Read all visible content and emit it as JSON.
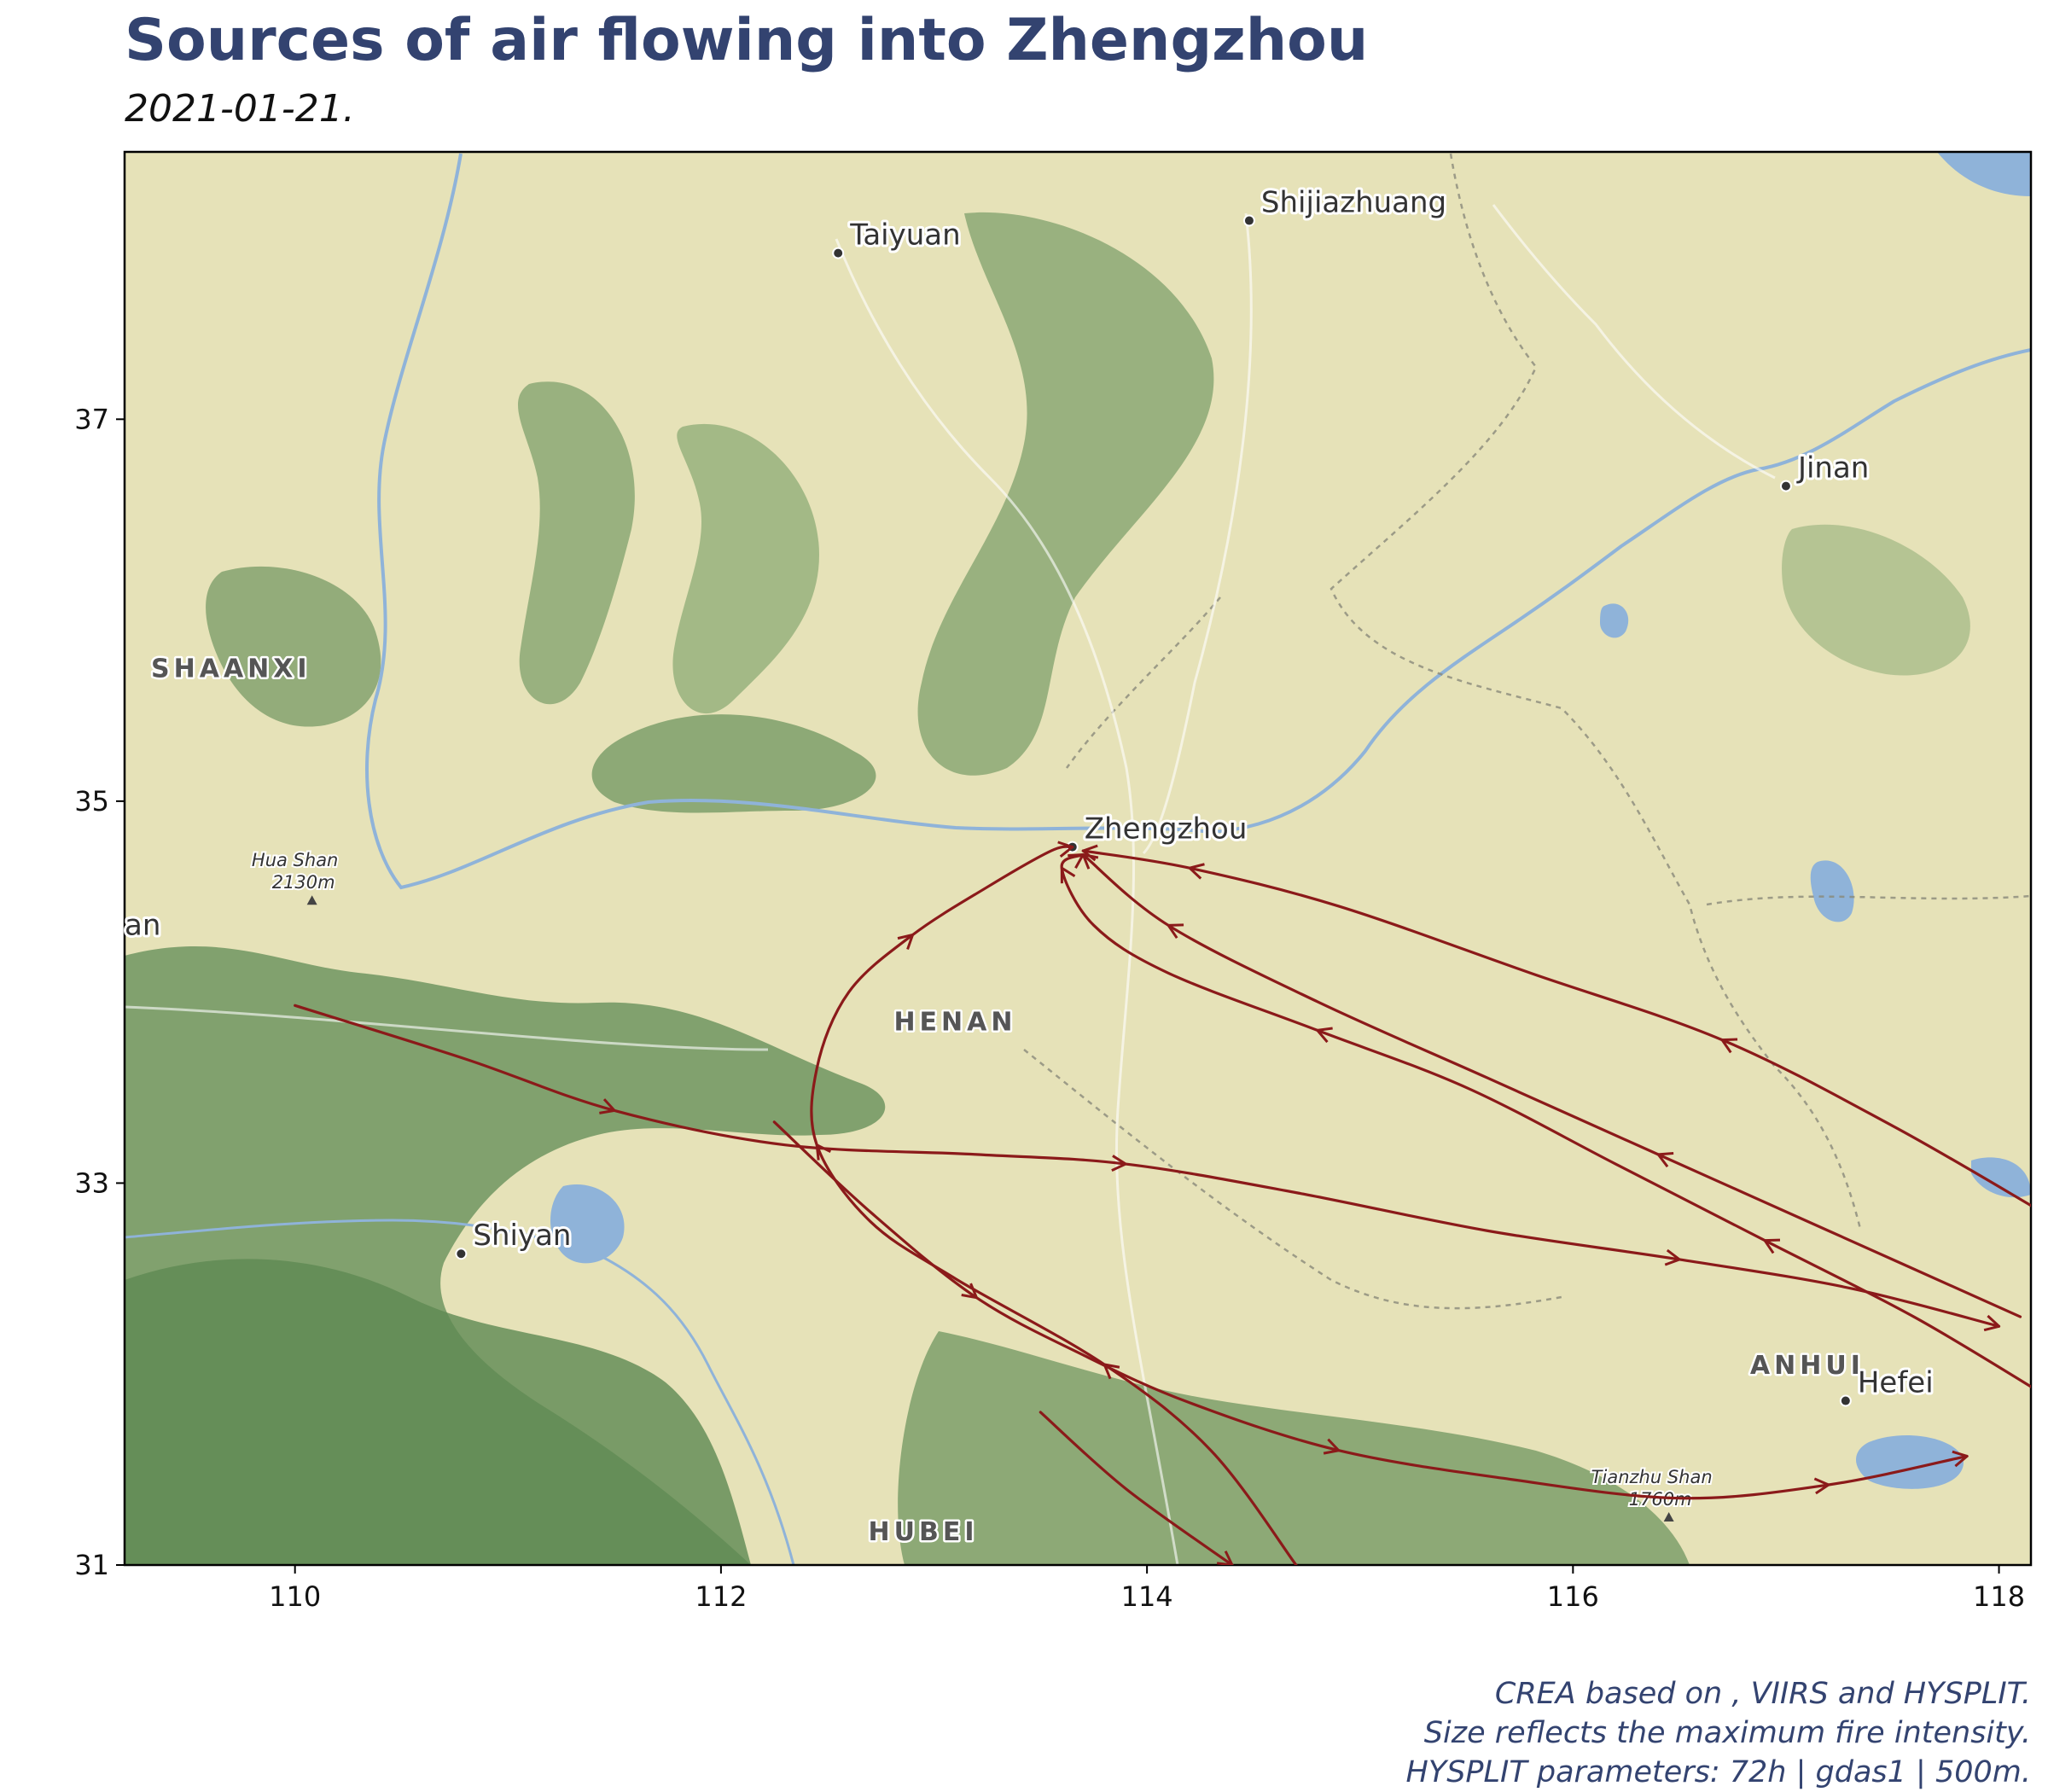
{
  "title": "Sources of air flowing into Zhengzhou",
  "subtitle": "2021-01-21.",
  "caption": {
    "line1": "CREA based on , VIIRS and HYSPLIT.",
    "line2": "Size reflects the maximum fire intensity.",
    "line3": "HYSPLIT parameters: 72h | gdas1 | 500m."
  },
  "colors": {
    "title": "#334370",
    "trajectory": "#8b1a1a",
    "land": "#e6e2b8",
    "mountain": "#6f9560",
    "water": "#8fb3d9"
  },
  "map": {
    "xlim": [
      109.2,
      118.15
    ],
    "ylim": [
      31,
      38.4
    ],
    "x_ticks": [
      {
        "value": 110,
        "label": "110"
      },
      {
        "value": 112,
        "label": "112"
      },
      {
        "value": 114,
        "label": "114"
      },
      {
        "value": 116,
        "label": "116"
      },
      {
        "value": 118,
        "label": "118"
      }
    ],
    "y_ticks": [
      {
        "value": 31,
        "label": "31"
      },
      {
        "value": 33,
        "label": "33"
      },
      {
        "value": 35,
        "label": "35"
      },
      {
        "value": 37,
        "label": "37"
      }
    ],
    "cities": [
      {
        "name": "Taiyuan",
        "lon": 112.55,
        "lat": 37.87
      },
      {
        "name": "Shijiazhuang",
        "lon": 114.48,
        "lat": 38.04
      },
      {
        "name": "Jinan",
        "lon": 117.0,
        "lat": 36.65
      },
      {
        "name": "Zhengzhou",
        "lon": 113.65,
        "lat": 34.76
      },
      {
        "name": "Shiyan",
        "lon": 110.78,
        "lat": 32.63
      },
      {
        "name": "Hefei",
        "lon": 117.28,
        "lat": 31.86
      }
    ],
    "regions": [
      {
        "name": "SHAANXI",
        "lon": 109.7,
        "lat": 35.65
      },
      {
        "name": "HENAN",
        "lon": 113.1,
        "lat": 33.8
      },
      {
        "name": "ANHUI",
        "lon": 117.1,
        "lat": 32.0
      },
      {
        "name": "HUBEI",
        "lon": 112.95,
        "lat": 31.13
      }
    ],
    "edge_labels": [
      {
        "text": "an",
        "lon": 109.2,
        "lat": 34.3
      }
    ],
    "peaks": [
      {
        "name": "Hua Shan",
        "elevation": "2130m",
        "lon": 110.08,
        "lat": 34.48
      },
      {
        "name": "Tianzhu Shan",
        "elevation": "1760m",
        "lon": 116.45,
        "lat": 31.25
      }
    ]
  },
  "trajectories": [
    {
      "id": "t1",
      "points": [
        [
          118.2,
          31.9
        ],
        [
          117.6,
          32.3
        ],
        [
          116.9,
          32.7
        ],
        [
          116.2,
          33.1
        ],
        [
          115.5,
          33.5
        ],
        [
          114.8,
          33.8
        ],
        [
          114.1,
          34.1
        ],
        [
          113.75,
          34.35
        ],
        [
          113.6,
          34.65
        ],
        [
          113.7,
          34.72
        ]
      ]
    },
    {
      "id": "t2",
      "points": [
        [
          118.2,
          32.85
        ],
        [
          117.5,
          33.3
        ],
        [
          116.7,
          33.75
        ],
        [
          115.8,
          34.1
        ],
        [
          114.9,
          34.45
        ],
        [
          114.2,
          34.65
        ],
        [
          113.7,
          34.74
        ]
      ]
    },
    {
      "id": "t3",
      "points": [
        [
          118.1,
          32.3
        ],
        [
          117.2,
          32.75
        ],
        [
          116.4,
          33.15
        ],
        [
          115.6,
          33.55
        ],
        [
          114.8,
          33.95
        ],
        [
          114.1,
          34.35
        ],
        [
          113.7,
          34.72
        ]
      ]
    },
    {
      "id": "t4",
      "points": [
        [
          110.0,
          33.93
        ],
        [
          110.8,
          33.65
        ],
        [
          111.5,
          33.38
        ],
        [
          112.3,
          33.2
        ],
        [
          113.2,
          33.15
        ],
        [
          113.9,
          33.1
        ],
        [
          114.7,
          32.95
        ],
        [
          115.6,
          32.75
        ],
        [
          116.5,
          32.6
        ],
        [
          117.3,
          32.45
        ],
        [
          118.0,
          32.25
        ]
      ]
    },
    {
      "id": "t5",
      "points": [
        [
          114.7,
          31.0
        ],
        [
          114.3,
          31.6
        ],
        [
          113.8,
          32.05
        ],
        [
          113.1,
          32.5
        ],
        [
          112.7,
          32.8
        ],
        [
          112.45,
          33.2
        ],
        [
          112.45,
          33.6
        ],
        [
          112.6,
          34.0
        ],
        [
          112.9,
          34.3
        ],
        [
          113.25,
          34.55
        ],
        [
          113.55,
          34.74
        ],
        [
          113.65,
          34.76
        ]
      ]
    },
    {
      "id": "t6",
      "points": [
        [
          112.25,
          33.32
        ],
        [
          112.7,
          32.85
        ],
        [
          113.2,
          32.4
        ],
        [
          113.7,
          32.1
        ],
        [
          114.2,
          31.85
        ],
        [
          114.9,
          31.6
        ],
        [
          115.7,
          31.45
        ],
        [
          116.5,
          31.35
        ],
        [
          117.2,
          31.42
        ],
        [
          117.85,
          31.57
        ]
      ]
    },
    {
      "id": "t7",
      "points": [
        [
          113.5,
          31.8
        ],
        [
          113.9,
          31.4
        ],
        [
          114.4,
          31.0
        ]
      ]
    }
  ]
}
